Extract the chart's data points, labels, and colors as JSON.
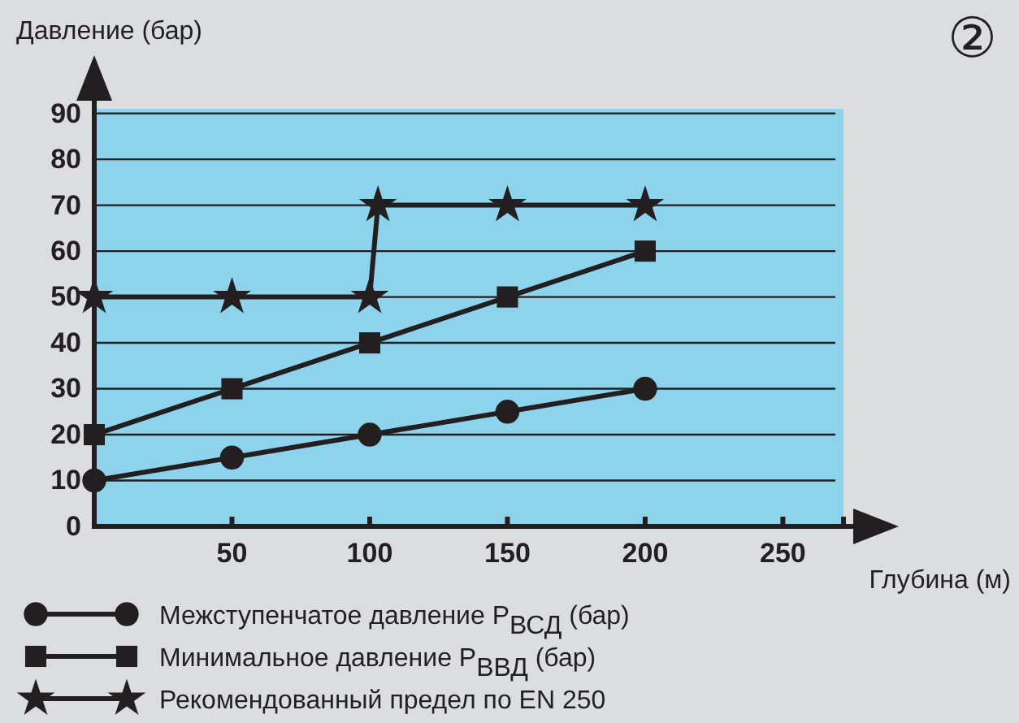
{
  "chart_data": {
    "type": "line",
    "ylabel": "Давление (бар)",
    "xlabel": "Глубина (м)",
    "annotations": [
      "②"
    ],
    "xlim": [
      0,
      272
    ],
    "ylim": [
      0,
      91
    ],
    "xticks": [
      50,
      100,
      150,
      200,
      250
    ],
    "yticks": [
      0,
      10,
      20,
      30,
      40,
      50,
      60,
      70,
      80,
      90
    ],
    "grid": "y",
    "legend": "bottom",
    "series": [
      {
        "name": "Межступенчатое давление P$_{ВСД}$ (бар)",
        "color": "#231f20",
        "marker": "circle",
        "x": [
          0,
          50,
          100,
          150,
          200
        ],
        "values": [
          10,
          15,
          20,
          25,
          30
        ]
      },
      {
        "name": "Минимальное давление P$_{ВВД}$ (бар)",
        "color": "#231f20",
        "marker": "square",
        "x": [
          0,
          50,
          100,
          150,
          200
        ],
        "values": [
          20,
          30,
          40,
          50,
          60
        ]
      },
      {
        "name": "Рекомендованный предел по EN 250",
        "color": "#231f20",
        "marker": "star",
        "x": [
          0,
          50,
          100,
          103,
          150,
          200
        ],
        "values": [
          50,
          50,
          50,
          70,
          70,
          70
        ]
      }
    ]
  }
}
